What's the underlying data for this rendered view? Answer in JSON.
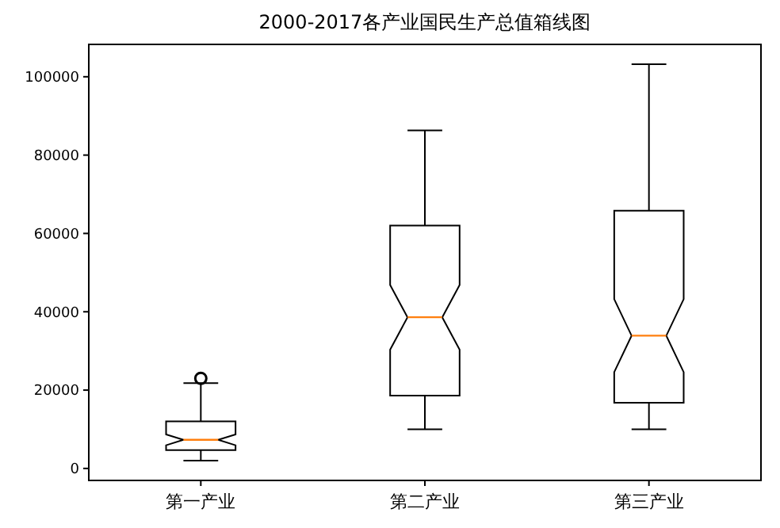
{
  "chart_data": {
    "type": "box",
    "title": "2000-2017各产业国民生产总值箱线图",
    "categories": [
      "第一产业",
      "第二产业",
      "第三产业"
    ],
    "boxes": [
      {
        "low": 2000,
        "q1": 4700,
        "median": 7300,
        "q3": 12000,
        "high": 21800,
        "outliers": [
          23000
        ]
      },
      {
        "low": 10000,
        "q1": 18600,
        "median": 38600,
        "q3": 62000,
        "high": 86300
      },
      {
        "low": 10000,
        "q1": 16800,
        "median": 33900,
        "q3": 65800,
        "high": 103200
      }
    ],
    "ylim": [
      -3060,
      108260
    ],
    "yticks": [
      0,
      20000,
      40000,
      60000,
      80000,
      100000
    ],
    "grid": false
  }
}
